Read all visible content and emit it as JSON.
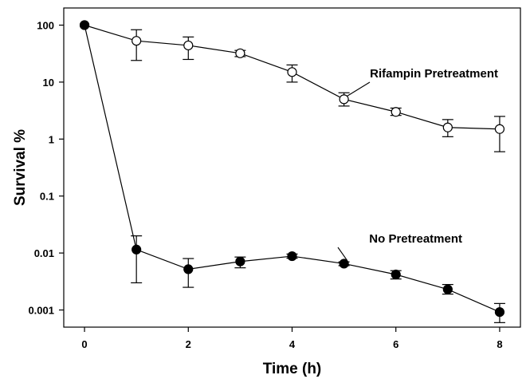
{
  "chart_data": {
    "type": "scatter",
    "xlabel": "Time (h)",
    "ylabel": "Survival %",
    "yscale": "log",
    "xlim": [
      -0.4,
      8.4
    ],
    "ylim": [
      0.0005,
      200
    ],
    "x_ticks": [
      0,
      2,
      4,
      6,
      8
    ],
    "x_tick_labels": [
      "0",
      "2",
      "4",
      "6",
      "8"
    ],
    "y_ticks": [
      100,
      10,
      1,
      0.1,
      0.01,
      0.001
    ],
    "y_tick_labels": [
      "100",
      "10",
      "1",
      "0.1",
      "0.01",
      "0.001"
    ],
    "grid": false,
    "legend": "none",
    "series": [
      {
        "name": "Rifampin Pretreatment",
        "marker": "open-circle",
        "color": "#000000",
        "x": [
          0,
          1,
          2,
          3,
          4,
          5,
          6,
          7,
          8
        ],
        "y": [
          100,
          53,
          44,
          32,
          15,
          5,
          3,
          1.6,
          1.5
        ],
        "err_low": [
          100,
          24,
          25,
          28,
          10,
          3.8,
          2.6,
          1.1,
          0.6
        ],
        "err_high": [
          100,
          83,
          62,
          36,
          20,
          6.5,
          3.5,
          2.2,
          2.5
        ]
      },
      {
        "name": "No Pretreatment",
        "marker": "filled-circle",
        "color": "#000000",
        "x": [
          0,
          1,
          2,
          3,
          4,
          5,
          6,
          7,
          8
        ],
        "y": [
          100,
          0.0115,
          0.0052,
          0.0071,
          0.0088,
          0.0065,
          0.0042,
          0.0023,
          0.00092
        ],
        "err_low": [
          100,
          0.003,
          0.0025,
          0.0055,
          0.0081,
          0.006,
          0.0035,
          0.0019,
          0.0006
        ],
        "err_high": [
          100,
          0.02,
          0.008,
          0.0085,
          0.0096,
          0.007,
          0.0049,
          0.0028,
          0.0013
        ]
      }
    ],
    "annotations": [
      {
        "text": "Rifampin Pretreatment",
        "series": 0,
        "point_index": 5
      },
      {
        "text": "No Pretreatment",
        "series": 1,
        "point_index": 5
      }
    ]
  }
}
